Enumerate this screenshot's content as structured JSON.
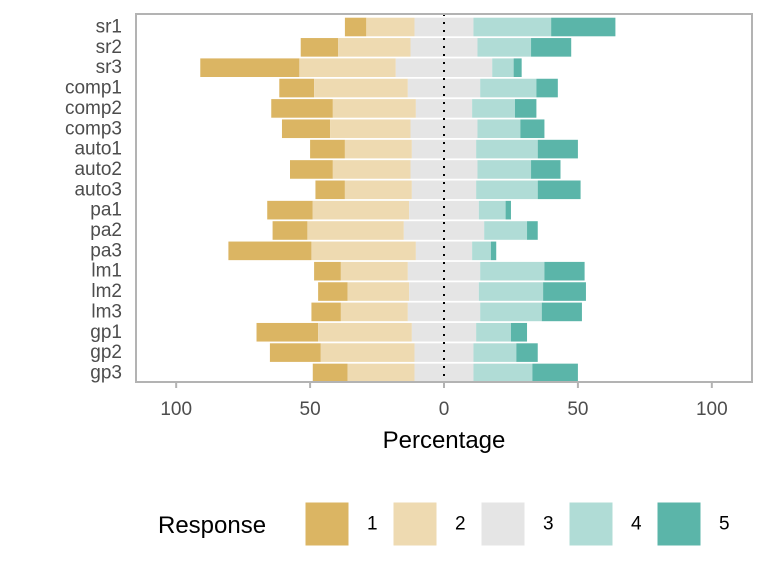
{
  "chart_data": {
    "type": "bar",
    "orientation": "horizontal",
    "stacked": "diverging",
    "xlabel": "Percentage",
    "ylabel": "",
    "xlim": [
      -115,
      115
    ],
    "xticks": [
      -100,
      -50,
      0,
      50,
      100
    ],
    "xtick_labels": [
      "100",
      "50",
      "0",
      "50",
      "100"
    ],
    "grid": false,
    "panel_border": true,
    "legend": {
      "title": "Response",
      "position": "bottom"
    },
    "categories": [
      "sr1",
      "sr2",
      "sr3",
      "comp1",
      "comp2",
      "comp3",
      "auto1",
      "auto2",
      "auto3",
      "pa1",
      "pa2",
      "pa3",
      "lm1",
      "lm2",
      "lm3",
      "gp1",
      "gp2",
      "gp3"
    ],
    "series": [
      {
        "name": "1",
        "color": "#dbb563",
        "values": [
          8,
          14,
          37,
          13,
          23,
          18,
          13,
          16,
          11,
          17,
          13,
          31,
          10,
          11,
          11,
          23,
          19,
          13
        ]
      },
      {
        "name": "2",
        "color": "#eedab1",
        "values": [
          18,
          27,
          36,
          35,
          31,
          30,
          25,
          29,
          25,
          36,
          36,
          39,
          25,
          23,
          25,
          35,
          35,
          25
        ]
      },
      {
        "name": "3",
        "color": "#e5e5e5",
        "values": [
          22,
          25,
          36,
          27,
          21,
          25,
          24,
          25,
          24,
          26,
          30,
          21,
          27,
          26,
          27,
          24,
          22,
          22
        ]
      },
      {
        "name": "4",
        "color": "#b0dcd6",
        "values": [
          29,
          20,
          8,
          21,
          16,
          16,
          23,
          20,
          23,
          10,
          16,
          7,
          24,
          24,
          23,
          13,
          16,
          22
        ]
      },
      {
        "name": "5",
        "color": "#5bb5a9",
        "values": [
          24,
          15,
          3,
          8,
          8,
          9,
          15,
          11,
          16,
          2,
          4,
          2,
          15,
          16,
          15,
          6,
          8,
          17
        ]
      }
    ]
  }
}
